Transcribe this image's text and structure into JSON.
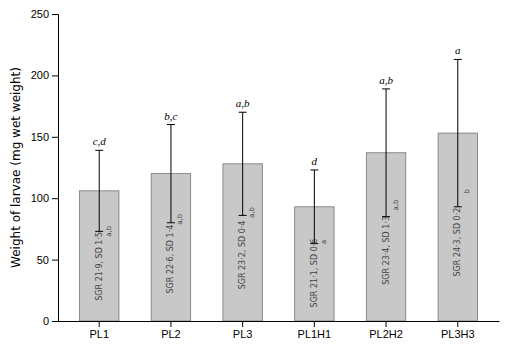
{
  "chart_data": {
    "type": "bar",
    "categories": [
      "PL1",
      "PL2",
      "PL3",
      "PL1H1",
      "PL2H2",
      "PL3H3"
    ],
    "values": [
      106,
      120,
      128,
      93,
      137,
      153
    ],
    "errors": [
      33,
      40,
      42,
      30,
      52,
      60
    ],
    "sig_labels": [
      "c,d",
      "b,c",
      "a,b",
      "d",
      "a,b",
      "a"
    ],
    "bar_texts": [
      "SGR 21·9, SD 1·5",
      "SGR 22·6, SD 1·4",
      "SGR 23·2, SD 0·4",
      "SGR 21·1, SD 0·6",
      "SGR 23·4, SD 1·3",
      "SGR 24·3, SD 0·2"
    ],
    "bar_text_superscripts": [
      "a,b",
      "a,b",
      "a,b",
      "a",
      "a,b",
      "b"
    ],
    "ylabel": "Weight of larvae (mg wet weight)",
    "ylim": [
      0,
      250
    ],
    "yticks": [
      0,
      50,
      100,
      150,
      200,
      250
    ],
    "color": "#c8c8c8",
    "grid": false
  }
}
